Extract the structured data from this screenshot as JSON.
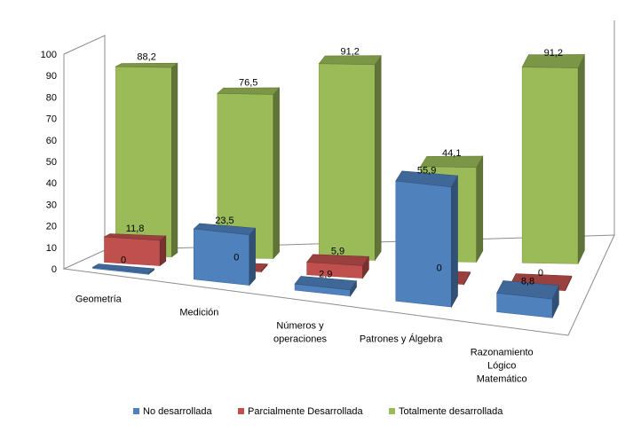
{
  "chart_data": {
    "type": "bar",
    "subtype": "3d-clustered-column",
    "title": "",
    "xlabel": "",
    "ylabel": "",
    "ylim": [
      0,
      100
    ],
    "y_ticks": [
      "0",
      "10",
      "20",
      "30",
      "40",
      "50",
      "60",
      "70",
      "80",
      "90",
      "100"
    ],
    "categories": [
      [
        "Geometría"
      ],
      [
        "Medición"
      ],
      [
        "Números y",
        "operaciones"
      ],
      [
        "Patrones y Álgebra"
      ],
      [
        "Razonamiento",
        "Lógico",
        "Matemático"
      ]
    ],
    "series": [
      {
        "name": "Totalmente desarrollada",
        "color": "#9bbb59",
        "values": [
          88.2,
          76.5,
          91.2,
          44.1,
          91.2
        ],
        "labels": [
          "88,2",
          "76,5",
          "91,2",
          "44,1",
          "91,2"
        ]
      },
      {
        "name": "Parcialmente Desarrollada",
        "color": "#c0504d",
        "values": [
          11.8,
          0,
          5.9,
          0,
          0
        ],
        "labels": [
          "11,8",
          "0",
          "5,9",
          "0",
          "0"
        ]
      },
      {
        "name": "No desarrollada",
        "color": "#4f81bd",
        "values": [
          0,
          23.5,
          2.9,
          55.9,
          8.8
        ],
        "labels": [
          "0",
          "23,5",
          "2,9",
          "55,9",
          "8,8"
        ]
      }
    ],
    "legend": {
      "position": "bottom",
      "items": [
        "No desarrollada",
        "Parcialmente Desarrollada",
        "Totalmente desarrollada"
      ]
    },
    "grid": false
  }
}
